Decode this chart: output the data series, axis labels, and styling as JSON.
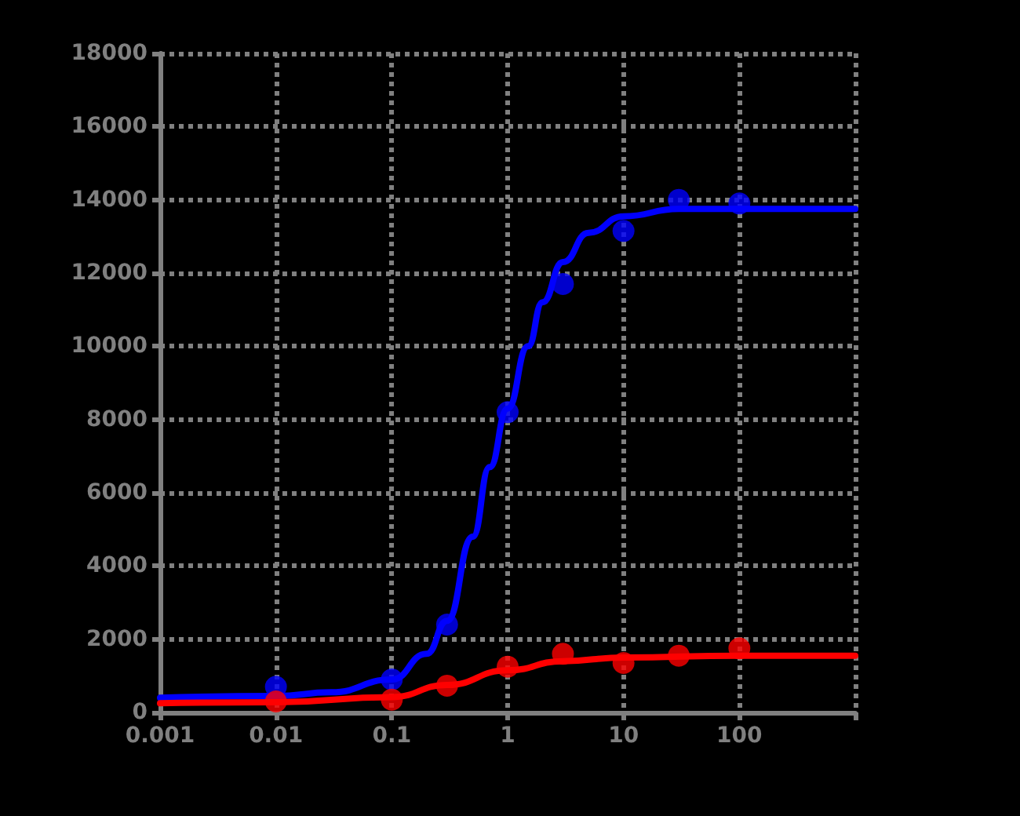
{
  "chart_data": {
    "type": "scatter",
    "log": "x",
    "grid": true,
    "marker": "circle",
    "xlim": [
      0.001,
      1000
    ],
    "xticks": [
      0.001,
      0.01,
      0.1,
      1,
      10,
      100,
      {
        "value": 1000,
        "label": null
      }
    ],
    "ylim": [
      0,
      18000
    ],
    "yticks": [
      0,
      2000,
      4000,
      6000,
      8000,
      10000,
      12000,
      14000,
      16000,
      18000
    ],
    "series": [
      {
        "type": "line",
        "marker": "none",
        "color": "#0000ff",
        "x": [
          0.001,
          0.01,
          0.03,
          0.1,
          0.2,
          0.3,
          0.5,
          0.7,
          1,
          1.5,
          2,
          3,
          5,
          10,
          30,
          100,
          1000
        ],
        "values": [
          400,
          450,
          550,
          900,
          1600,
          2500,
          4800,
          6700,
          8300,
          10000,
          11200,
          12300,
          13100,
          13550,
          13750,
          13750,
          13750
        ]
      },
      {
        "type": "line",
        "marker": "none",
        "color": "#ff0000",
        "x": [
          0.001,
          0.01,
          0.1,
          0.3,
          1,
          3,
          10,
          100,
          1000
        ],
        "values": [
          250,
          280,
          420,
          750,
          1150,
          1400,
          1500,
          1550,
          1550
        ]
      },
      {
        "color": "#0000ff",
        "x": [
          0.01,
          0.1,
          0.3,
          1,
          3,
          10,
          30,
          100
        ],
        "values": [
          700,
          900,
          2400,
          8200,
          11700,
          13150,
          14000,
          13900
        ]
      },
      {
        "color": "#ff0000",
        "x": [
          0.01,
          0.1,
          0.3,
          1,
          3,
          10,
          30,
          100
        ],
        "values": [
          300,
          350,
          730,
          1250,
          1600,
          1350,
          1550,
          1750
        ]
      }
    ]
  }
}
